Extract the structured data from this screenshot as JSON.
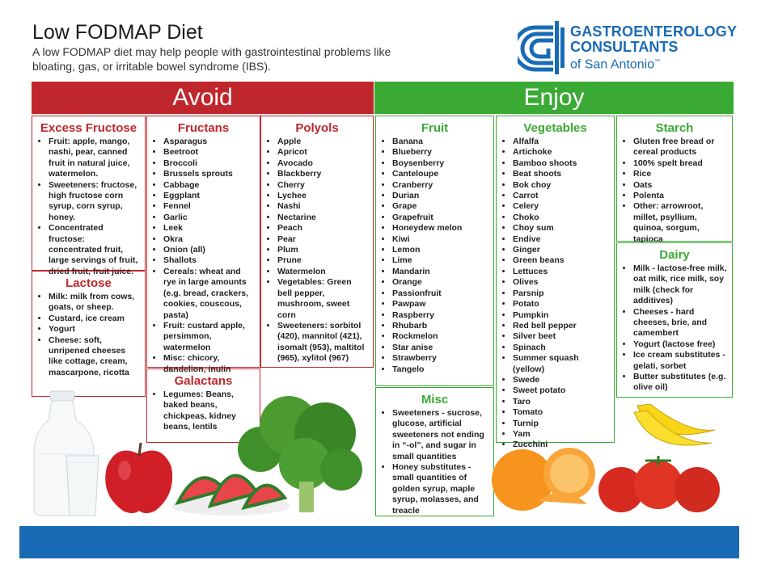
{
  "header": {
    "title": "Low FODMAP Diet",
    "subtitle": "A low FODMAP diet may help people with gastrointestinal problems like bloating, gas, or irritable bowel syndrome (IBS).",
    "logo_line1": "GASTROENTEROLOGY",
    "logo_line2": "CONSULTANTS",
    "logo_line3": "of San Antonio",
    "logo_tm": "™"
  },
  "colors": {
    "avoid": "#c0272d",
    "enjoy": "#3aaa35",
    "brand_blue": "#1a6bb5"
  },
  "avoid": {
    "label": "Avoid",
    "excess_fructose": {
      "title": "Excess Fructose",
      "items": [
        "Fruit: apple, mango, nashi, pear, canned fruit in natural juice, watermelon.",
        "Sweeteners: fructose, high fructose corn syrup, corn syrup, honey.",
        "Concentrated fructose: concentrated fruit, large servings of fruit, dried fruit, fruit juice."
      ]
    },
    "lactose": {
      "title": "Lactose",
      "items": [
        "Milk: milk from cows, goats, or sheep.",
        "Custard, ice cream",
        "Yogurt",
        "Cheese: soft, unripened cheeses like cottage, cream, mascarpone, ricotta"
      ]
    },
    "fructans": {
      "title": "Fructans",
      "items": [
        "Asparagus",
        "Beetroot",
        "Broccoli",
        "Brussels sprouts",
        "Cabbage",
        "Eggplant",
        "Fennel",
        "Garlic",
        "Leek",
        "Okra",
        "Onion (all)",
        "Shallots",
        "Cereals: wheat and rye in large amounts (e.g. bread, crackers, cookies, couscous, pasta)",
        "Fruit: custard apple, persimmon, watermelon",
        "Misc: chicory, dandelion, inulin"
      ]
    },
    "galactans": {
      "title": "Galactans",
      "items": [
        "Legumes: Beans, baked beans, chickpeas, kidney beans, lentils"
      ]
    },
    "polyols": {
      "title": "Polyols",
      "items": [
        "Apple",
        "Apricot",
        "Avocado",
        "Blackberry",
        "Cherry",
        "Lychee",
        "Nashi",
        "Nectarine",
        "Peach",
        "Pear",
        "Plum",
        "Prune",
        "Watermelon",
        "Vegetables: Green bell pepper, mushroom, sweet corn",
        "Sweeteners: sorbitol (420), mannitol (421), isomalt (953), maltitol (965), xylitol (967)"
      ]
    }
  },
  "enjoy": {
    "label": "Enjoy",
    "fruit": {
      "title": "Fruit",
      "items": [
        "Banana",
        "Blueberry",
        "Boysenberry",
        "Canteloupe",
        "Cranberry",
        "Durian",
        "Grape",
        "Grapefruit",
        "Honeydew melon",
        "Kiwi",
        "Lemon",
        "Lime",
        "Mandarin",
        "Orange",
        "Passionfruit",
        "Pawpaw",
        "Raspberry",
        "Rhubarb",
        "Rockmelon",
        "Star anise",
        "Strawberry",
        "Tangelo"
      ]
    },
    "misc": {
      "title": "Misc",
      "items": [
        "Sweeteners - sucrose, glucose, artificial sweeteners not ending in “-ol”, and sugar in small quantities",
        "Honey substitutes - small quantities of golden syrup, maple syrup, molasses, and treacle"
      ]
    },
    "vegetables": {
      "title": "Vegetables",
      "items": [
        "Alfalfa",
        "Artichoke",
        "Bamboo shoots",
        "Beat shoots",
        "Bok choy",
        "Carrot",
        "Celery",
        "Choko",
        "Choy sum",
        "Endive",
        "Ginger",
        "Green beans",
        "Lettuces",
        "Olives",
        "Parsnip",
        "Potato",
        "Pumpkin",
        "Red bell pepper",
        "Silver beet",
        "Spinach",
        "Summer squash (yellow)",
        "Swede",
        "Sweet potato",
        "Taro",
        "Tomato",
        "Turnip",
        "Yam",
        "Zucchini"
      ]
    },
    "starch": {
      "title": "Starch",
      "items": [
        "Gluten free bread or cereal products",
        "100% spelt bread",
        "Rice",
        "Oats",
        "Polenta",
        "Other: arrowroot, millet, psyllium, quinoa, sorgum, tapioca"
      ]
    },
    "dairy": {
      "title": "Dairy",
      "items": [
        "Milk - lactose-free milk, oat milk, rice milk, soy milk (check for additives)",
        "Cheeses - hard cheeses, brie, and camembert",
        "Yogurt (lactose free)",
        "Ice cream substitutes - gelati, sorbet",
        "Butter substitutes (e.g. olive oil)"
      ]
    }
  }
}
